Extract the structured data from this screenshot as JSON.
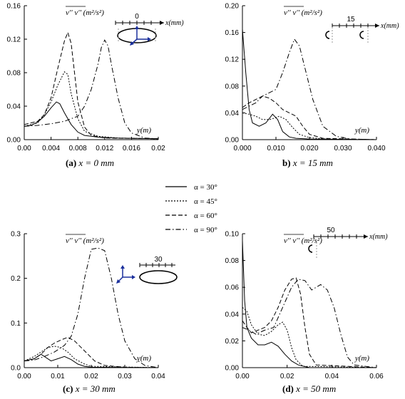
{
  "chart_data": [
    {
      "panel": "a",
      "type": "line",
      "caption_letter": "(a)",
      "caption_text": "x = 0 mm",
      "ylabel": "v'' v'' (m²/s²)",
      "xlabel": "y(m)",
      "xlim": [
        0,
        0.02
      ],
      "ylim": [
        0,
        0.16
      ],
      "xticks": [
        "0.00",
        "0.004",
        "0.008",
        "0.012",
        "0.016",
        "0.02"
      ],
      "yticks": [
        "0.00",
        "0.04",
        "0.08",
        "0.12",
        "0.16"
      ],
      "inset_label": "0",
      "inset_unit": "x(mm)",
      "series": [
        {
          "name": "α = 30°",
          "style": "solid",
          "points": [
            [
              0,
              0.016
            ],
            [
              0.001,
              0.017
            ],
            [
              0.002,
              0.021
            ],
            [
              0.003,
              0.028
            ],
            [
              0.004,
              0.038
            ],
            [
              0.0048,
              0.045
            ],
            [
              0.0053,
              0.043
            ],
            [
              0.006,
              0.032
            ],
            [
              0.007,
              0.018
            ],
            [
              0.008,
              0.009
            ],
            [
              0.009,
              0.005
            ],
            [
              0.011,
              0.003
            ],
            [
              0.014,
              0.002
            ],
            [
              0.02,
              0.001
            ]
          ]
        },
        {
          "name": "α = 45°",
          "style": "dot",
          "points": [
            [
              0,
              0.016
            ],
            [
              0.002,
              0.02
            ],
            [
              0.003,
              0.03
            ],
            [
              0.004,
              0.045
            ],
            [
              0.005,
              0.065
            ],
            [
              0.006,
              0.081
            ],
            [
              0.0065,
              0.078
            ],
            [
              0.007,
              0.055
            ],
            [
              0.008,
              0.025
            ],
            [
              0.009,
              0.01
            ],
            [
              0.011,
              0.004
            ],
            [
              0.014,
              0.002
            ],
            [
              0.02,
              0.001
            ]
          ]
        },
        {
          "name": "α = 60°",
          "style": "dash",
          "points": [
            [
              0,
              0.018
            ],
            [
              0.002,
              0.022
            ],
            [
              0.003,
              0.03
            ],
            [
              0.004,
              0.05
            ],
            [
              0.005,
              0.085
            ],
            [
              0.006,
              0.118
            ],
            [
              0.0065,
              0.128
            ],
            [
              0.007,
              0.115
            ],
            [
              0.0075,
              0.08
            ],
            [
              0.008,
              0.045
            ],
            [
              0.009,
              0.015
            ],
            [
              0.01,
              0.005
            ],
            [
              0.012,
              0.002
            ],
            [
              0.02,
              0.001
            ]
          ]
        },
        {
          "name": "α = 90°",
          "style": "dashdot",
          "points": [
            [
              0,
              0.016
            ],
            [
              0.002,
              0.017
            ],
            [
              0.004,
              0.019
            ],
            [
              0.006,
              0.022
            ],
            [
              0.008,
              0.028
            ],
            [
              0.009,
              0.04
            ],
            [
              0.01,
              0.06
            ],
            [
              0.011,
              0.09
            ],
            [
              0.0115,
              0.11
            ],
            [
              0.012,
              0.119
            ],
            [
              0.0125,
              0.112
            ],
            [
              0.013,
              0.09
            ],
            [
              0.014,
              0.05
            ],
            [
              0.015,
              0.02
            ],
            [
              0.016,
              0.008
            ],
            [
              0.018,
              0.002
            ],
            [
              0.02,
              0.001
            ]
          ]
        }
      ]
    },
    {
      "panel": "b",
      "type": "line",
      "caption_letter": "b)",
      "caption_text": "x = 15 mm",
      "ylabel": "v'' v'' (m²/s²)",
      "xlabel": "y(m)",
      "xlim": [
        0,
        0.04
      ],
      "ylim": [
        0,
        0.2
      ],
      "xticks": [
        "0.000",
        "0.010",
        "0.020",
        "0.030",
        "0.040"
      ],
      "yticks": [
        "0.00",
        "0.04",
        "0.08",
        "0.12",
        "0.16",
        "0.20"
      ],
      "inset_label": "15",
      "inset_unit": "x(mm)",
      "series": [
        {
          "name": "α = 30°",
          "style": "solid",
          "points": [
            [
              0,
              0.165
            ],
            [
              0.001,
              0.1
            ],
            [
              0.002,
              0.045
            ],
            [
              0.003,
              0.025
            ],
            [
              0.005,
              0.02
            ],
            [
              0.007,
              0.025
            ],
            [
              0.009,
              0.038
            ],
            [
              0.0105,
              0.03
            ],
            [
              0.012,
              0.012
            ],
            [
              0.014,
              0.004
            ],
            [
              0.016,
              0.002
            ],
            [
              0.02,
              0.001
            ],
            [
              0.04,
              0.0
            ]
          ]
        },
        {
          "name": "α = 45°",
          "style": "dot",
          "points": [
            [
              0,
              0.04
            ],
            [
              0.002,
              0.038
            ],
            [
              0.004,
              0.035
            ],
            [
              0.006,
              0.03
            ],
            [
              0.008,
              0.03
            ],
            [
              0.0095,
              0.032
            ],
            [
              0.011,
              0.035
            ],
            [
              0.013,
              0.03
            ],
            [
              0.015,
              0.018
            ],
            [
              0.017,
              0.008
            ],
            [
              0.02,
              0.003
            ],
            [
              0.025,
              0.001
            ],
            [
              0.04,
              0.0
            ]
          ]
        },
        {
          "name": "α = 60°",
          "style": "dash",
          "points": [
            [
              0,
              0.048
            ],
            [
              0.002,
              0.055
            ],
            [
              0.004,
              0.06
            ],
            [
              0.006,
              0.065
            ],
            [
              0.008,
              0.062
            ],
            [
              0.01,
              0.055
            ],
            [
              0.012,
              0.045
            ],
            [
              0.014,
              0.04
            ],
            [
              0.016,
              0.035
            ],
            [
              0.018,
              0.02
            ],
            [
              0.02,
              0.008
            ],
            [
              0.024,
              0.002
            ],
            [
              0.04,
              0.0
            ]
          ]
        },
        {
          "name": "α = 90°",
          "style": "dashdot",
          "points": [
            [
              0,
              0.045
            ],
            [
              0.002,
              0.05
            ],
            [
              0.004,
              0.055
            ],
            [
              0.006,
              0.065
            ],
            [
              0.008,
              0.07
            ],
            [
              0.01,
              0.075
            ],
            [
              0.012,
              0.1
            ],
            [
              0.014,
              0.13
            ],
            [
              0.0155,
              0.15
            ],
            [
              0.017,
              0.14
            ],
            [
              0.019,
              0.1
            ],
            [
              0.021,
              0.06
            ],
            [
              0.024,
              0.02
            ],
            [
              0.028,
              0.005
            ],
            [
              0.032,
              0.001
            ],
            [
              0.04,
              0.0
            ]
          ]
        }
      ]
    },
    {
      "panel": "c",
      "type": "line",
      "caption_letter": "(c)",
      "caption_text": "x = 30 mm",
      "ylabel": "v'' v'' (m²/s²)",
      "xlabel": "y(m)",
      "xlim": [
        0,
        0.04
      ],
      "ylim": [
        0,
        0.3
      ],
      "xticks": [
        "0.00",
        "0.01",
        "0.02",
        "0.03",
        "0.04"
      ],
      "yticks": [
        "0.0",
        "0.1",
        "0.2",
        "0.3"
      ],
      "inset_label": "30",
      "inset_unit": "",
      "series": [
        {
          "name": "α = 30°",
          "style": "solid",
          "points": [
            [
              0,
              0.015
            ],
            [
              0.003,
              0.02
            ],
            [
              0.005,
              0.03
            ],
            [
              0.006,
              0.025
            ],
            [
              0.008,
              0.015
            ],
            [
              0.01,
              0.02
            ],
            [
              0.012,
              0.025
            ],
            [
              0.014,
              0.018
            ],
            [
              0.016,
              0.008
            ],
            [
              0.018,
              0.003
            ],
            [
              0.02,
              0.001
            ],
            [
              0.04,
              0.0
            ]
          ]
        },
        {
          "name": "α = 45°",
          "style": "dot",
          "points": [
            [
              0,
              0.015
            ],
            [
              0.003,
              0.025
            ],
            [
              0.005,
              0.035
            ],
            [
              0.007,
              0.045
            ],
            [
              0.009,
              0.048
            ],
            [
              0.011,
              0.045
            ],
            [
              0.013,
              0.035
            ],
            [
              0.015,
              0.02
            ],
            [
              0.018,
              0.008
            ],
            [
              0.02,
              0.003
            ],
            [
              0.04,
              0.0
            ]
          ]
        },
        {
          "name": "α = 60°",
          "style": "dash",
          "points": [
            [
              0,
              0.015
            ],
            [
              0.003,
              0.02
            ],
            [
              0.005,
              0.03
            ],
            [
              0.007,
              0.045
            ],
            [
              0.009,
              0.055
            ],
            [
              0.011,
              0.062
            ],
            [
              0.013,
              0.068
            ],
            [
              0.015,
              0.06
            ],
            [
              0.017,
              0.045
            ],
            [
              0.019,
              0.03
            ],
            [
              0.021,
              0.015
            ],
            [
              0.024,
              0.005
            ],
            [
              0.03,
              0.001
            ],
            [
              0.04,
              0.0
            ]
          ]
        },
        {
          "name": "α = 90°",
          "style": "dashdot",
          "points": [
            [
              0,
              0.015
            ],
            [
              0.003,
              0.017
            ],
            [
              0.006,
              0.025
            ],
            [
              0.009,
              0.035
            ],
            [
              0.012,
              0.05
            ],
            [
              0.014,
              0.07
            ],
            [
              0.016,
              0.12
            ],
            [
              0.018,
              0.2
            ],
            [
              0.02,
              0.265
            ],
            [
              0.022,
              0.268
            ],
            [
              0.024,
              0.262
            ],
            [
              0.026,
              0.2
            ],
            [
              0.028,
              0.12
            ],
            [
              0.03,
              0.06
            ],
            [
              0.033,
              0.02
            ],
            [
              0.036,
              0.005
            ],
            [
              0.04,
              0.0
            ]
          ]
        }
      ]
    },
    {
      "panel": "d",
      "type": "line",
      "caption_letter": "(d)",
      "caption_text": "x = 50 mm",
      "ylabel": "v'' v'' (m²/s²)",
      "xlabel": "y(m)",
      "xlim": [
        0,
        0.06
      ],
      "ylim": [
        0,
        0.1
      ],
      "xticks": [
        "0.00",
        "0.02",
        "0.04",
        "0.06"
      ],
      "yticks": [
        "0.00",
        "0.02",
        "0.04",
        "0.06",
        "0.08",
        "0.10"
      ],
      "inset_label": "50",
      "inset_unit": "x(mm)",
      "series": [
        {
          "name": "α = 30°",
          "style": "solid",
          "points": [
            [
              0,
              0.095
            ],
            [
              0.001,
              0.05
            ],
            [
              0.002,
              0.03
            ],
            [
              0.004,
              0.022
            ],
            [
              0.007,
              0.017
            ],
            [
              0.01,
              0.017
            ],
            [
              0.013,
              0.019
            ],
            [
              0.016,
              0.016
            ],
            [
              0.019,
              0.01
            ],
            [
              0.022,
              0.005
            ],
            [
              0.025,
              0.002
            ],
            [
              0.03,
              0.0
            ],
            [
              0.06,
              0.0
            ]
          ]
        },
        {
          "name": "α = 45°",
          "style": "dot",
          "points": [
            [
              0,
              0.045
            ],
            [
              0.002,
              0.042
            ],
            [
              0.004,
              0.032
            ],
            [
              0.007,
              0.025
            ],
            [
              0.01,
              0.024
            ],
            [
              0.013,
              0.027
            ],
            [
              0.016,
              0.032
            ],
            [
              0.018,
              0.034
            ],
            [
              0.02,
              0.028
            ],
            [
              0.022,
              0.015
            ],
            [
              0.024,
              0.006
            ],
            [
              0.027,
              0.001
            ],
            [
              0.06,
              0.0
            ]
          ]
        },
        {
          "name": "α = 60°",
          "style": "dash",
          "points": [
            [
              0,
              0.035
            ],
            [
              0.002,
              0.03
            ],
            [
              0.004,
              0.026
            ],
            [
              0.007,
              0.028
            ],
            [
              0.01,
              0.03
            ],
            [
              0.013,
              0.035
            ],
            [
              0.016,
              0.045
            ],
            [
              0.019,
              0.058
            ],
            [
              0.022,
              0.066
            ],
            [
              0.024,
              0.067
            ],
            [
              0.026,
              0.055
            ],
            [
              0.028,
              0.03
            ],
            [
              0.03,
              0.01
            ],
            [
              0.033,
              0.002
            ],
            [
              0.06,
              0.0
            ]
          ]
        },
        {
          "name": "α = 90°",
          "style": "dashdot",
          "points": [
            [
              0,
              0.03
            ],
            [
              0.003,
              0.028
            ],
            [
              0.006,
              0.025
            ],
            [
              0.01,
              0.028
            ],
            [
              0.014,
              0.03
            ],
            [
              0.018,
              0.045
            ],
            [
              0.022,
              0.06
            ],
            [
              0.025,
              0.066
            ],
            [
              0.028,
              0.065
            ],
            [
              0.031,
              0.058
            ],
            [
              0.035,
              0.062
            ],
            [
              0.038,
              0.058
            ],
            [
              0.041,
              0.045
            ],
            [
              0.044,
              0.025
            ],
            [
              0.047,
              0.008
            ],
            [
              0.05,
              0.002
            ],
            [
              0.06,
              0.0
            ]
          ]
        }
      ]
    }
  ],
  "legend": [
    {
      "label": "α = 30°",
      "style": "solid"
    },
    {
      "label": "α = 45°",
      "style": "dot"
    },
    {
      "label": "α = 60°",
      "style": "dash"
    },
    {
      "label": "α = 90°",
      "style": "dashdot"
    }
  ],
  "colors": {
    "lines": "#000000",
    "inset_arrow": "#1a2f9c"
  }
}
